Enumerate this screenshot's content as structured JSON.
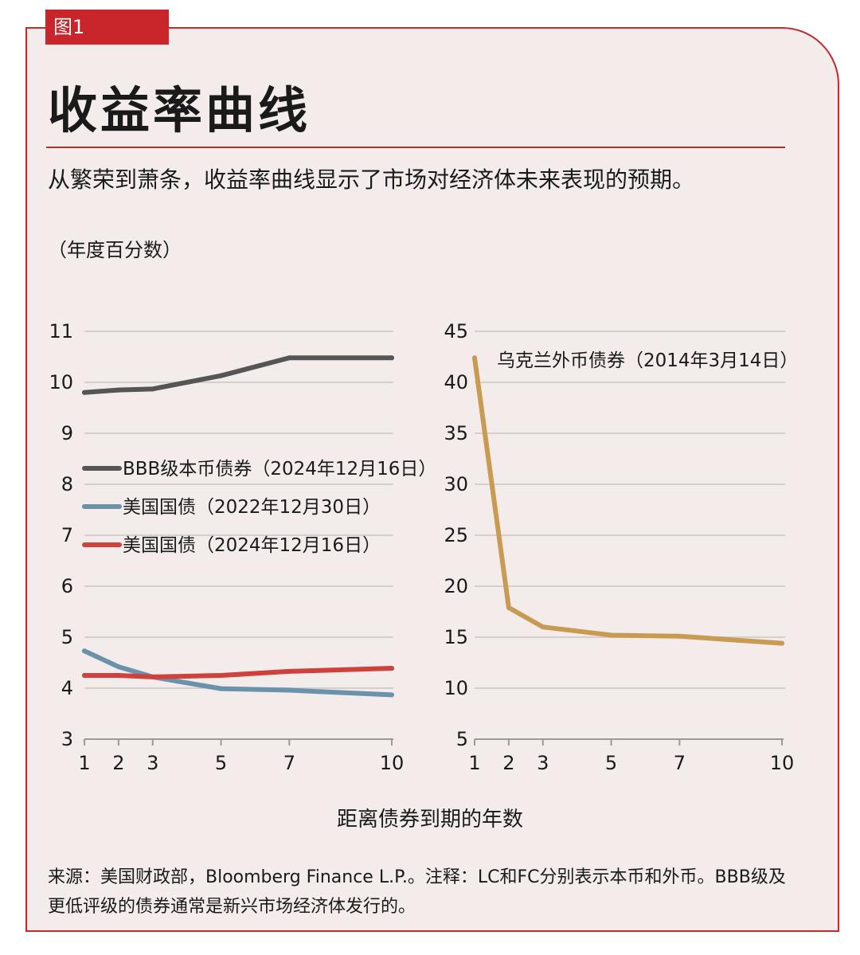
{
  "figure_tag": "图1",
  "title": "收益率曲线",
  "subtitle": "从繁荣到萧条，收益率曲线显示了市场对经济体未来表现的预期。",
  "unit_label": "（年度百分数）",
  "xlabel": "距离债券到期的年数",
  "footer": {
    "line1": "来源：美国财政部，Bloomberg Finance L.P.。注释：LC和FC分别表示本币和外币。BBB级及",
    "line2": "更低评级的债券通常是新兴市场经济体发行的。"
  },
  "chart_data": [
    {
      "type": "line",
      "categories": [
        "1",
        "2",
        "3",
        "5",
        "7",
        "10"
      ],
      "ylim": [
        3,
        11
      ],
      "yticks": [
        "3",
        "4",
        "5",
        "6",
        "7",
        "8",
        "9",
        "10",
        "11"
      ],
      "grid": true,
      "legend_position": "center-left",
      "series": [
        {
          "name": "BBB级本币债券（2024年12月16日）",
          "color": "#555555",
          "values": [
            9.8,
            9.85,
            9.87,
            10.13,
            10.48,
            10.48
          ]
        },
        {
          "name": "美国国债（2022年12月30日）",
          "color": "#6a92aa",
          "values": [
            4.73,
            4.42,
            4.22,
            3.99,
            3.96,
            3.87
          ]
        },
        {
          "name": "美国国债（2024年12月16日）",
          "color": "#d0413c",
          "values": [
            4.25,
            4.25,
            4.22,
            4.25,
            4.33,
            4.39
          ]
        }
      ]
    },
    {
      "type": "line",
      "categories": [
        "1",
        "2",
        "3",
        "5",
        "7",
        "10"
      ],
      "ylim": [
        5,
        45
      ],
      "yticks": [
        "5",
        "10",
        "15",
        "20",
        "25",
        "30",
        "35",
        "40",
        "45"
      ],
      "grid": true,
      "legend_position": "top-right",
      "series": [
        {
          "name": "乌克兰外币债券（2014年3月14日）",
          "color": "#c99a52",
          "values": [
            42.4,
            17.9,
            16.0,
            15.2,
            15.1,
            14.4
          ]
        }
      ]
    }
  ]
}
